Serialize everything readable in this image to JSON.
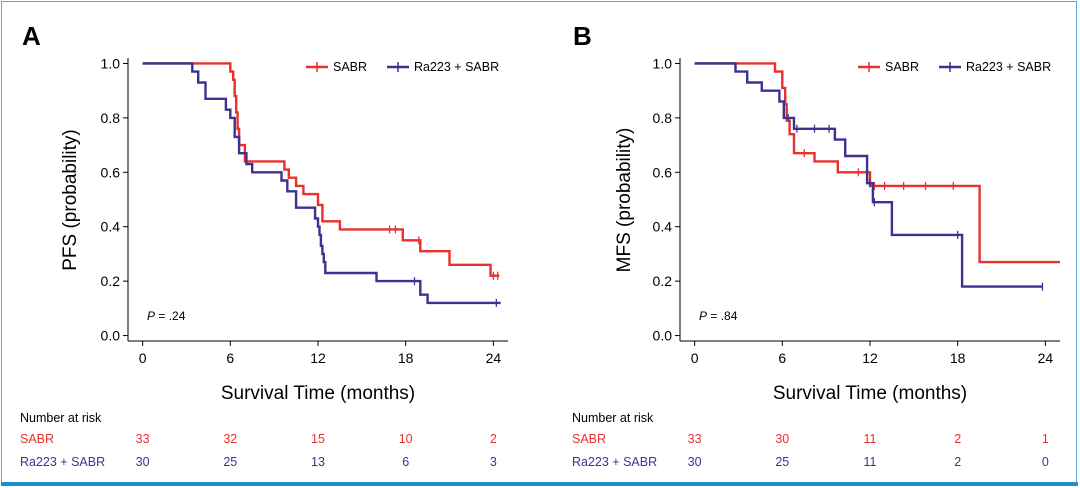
{
  "chart_data": [
    {
      "panel_label": "A",
      "type": "line",
      "subtype": "kaplan-meier",
      "ylabel": "PFS (probability)",
      "xlabel": "Survival Time (months)",
      "xlim": [
        -1,
        25
      ],
      "ylim": [
        -0.02,
        1.02
      ],
      "xticks": [
        0,
        6,
        12,
        18,
        24
      ],
      "yticks": [
        0.0,
        0.2,
        0.4,
        0.6,
        0.8,
        1.0
      ],
      "ytick_labels": [
        "0.0",
        "0.2",
        "0.4",
        "0.6",
        "0.8",
        "1.0"
      ],
      "legend_position": "top-right",
      "p_label": "P",
      "p_value": " = .24",
      "series": [
        {
          "name": "SABR",
          "color": "#e8312d",
          "steps": [
            [
              0,
              1.0
            ],
            [
              6,
              1.0
            ],
            [
              6,
              0.97
            ],
            [
              6.2,
              0.97
            ],
            [
              6.2,
              0.94
            ],
            [
              6.3,
              0.94
            ],
            [
              6.3,
              0.88
            ],
            [
              6.4,
              0.88
            ],
            [
              6.4,
              0.82
            ],
            [
              6.5,
              0.82
            ],
            [
              6.5,
              0.76
            ],
            [
              6.6,
              0.76
            ],
            [
              6.6,
              0.7
            ],
            [
              7.0,
              0.7
            ],
            [
              7.0,
              0.64
            ],
            [
              9.7,
              0.64
            ],
            [
              9.7,
              0.61
            ],
            [
              10.0,
              0.61
            ],
            [
              10.0,
              0.58
            ],
            [
              10.5,
              0.58
            ],
            [
              10.5,
              0.55
            ],
            [
              11.0,
              0.55
            ],
            [
              11.0,
              0.52
            ],
            [
              12.0,
              0.52
            ],
            [
              12.0,
              0.48
            ],
            [
              12.3,
              0.48
            ],
            [
              12.3,
              0.42
            ],
            [
              13.5,
              0.42
            ],
            [
              13.5,
              0.39
            ],
            [
              17.8,
              0.39
            ],
            [
              17.8,
              0.35
            ],
            [
              19.0,
              0.35
            ],
            [
              19.0,
              0.31
            ],
            [
              21.0,
              0.31
            ],
            [
              21.0,
              0.26
            ],
            [
              23.8,
              0.26
            ],
            [
              23.8,
              0.22
            ],
            [
              24.4,
              0.22
            ]
          ],
          "censored": [
            [
              16.9,
              0.39
            ],
            [
              17.3,
              0.39
            ],
            [
              18.9,
              0.35
            ],
            [
              24.0,
              0.22
            ],
            [
              24.3,
              0.22
            ]
          ]
        },
        {
          "name": "Ra223 + SABR",
          "color": "#3a3391",
          "steps": [
            [
              0,
              1.0
            ],
            [
              3.4,
              1.0
            ],
            [
              3.4,
              0.97
            ],
            [
              3.8,
              0.97
            ],
            [
              3.8,
              0.93
            ],
            [
              4.3,
              0.93
            ],
            [
              4.3,
              0.87
            ],
            [
              5.7,
              0.87
            ],
            [
              5.7,
              0.83
            ],
            [
              6.0,
              0.83
            ],
            [
              6.0,
              0.8
            ],
            [
              6.3,
              0.8
            ],
            [
              6.3,
              0.73
            ],
            [
              6.6,
              0.73
            ],
            [
              6.6,
              0.67
            ],
            [
              7.1,
              0.67
            ],
            [
              7.1,
              0.63
            ],
            [
              7.5,
              0.63
            ],
            [
              7.5,
              0.6
            ],
            [
              9.5,
              0.6
            ],
            [
              9.5,
              0.57
            ],
            [
              9.9,
              0.57
            ],
            [
              9.9,
              0.53
            ],
            [
              10.5,
              0.53
            ],
            [
              10.5,
              0.47
            ],
            [
              11.8,
              0.47
            ],
            [
              11.8,
              0.43
            ],
            [
              12.0,
              0.43
            ],
            [
              12.0,
              0.4
            ],
            [
              12.1,
              0.4
            ],
            [
              12.1,
              0.37
            ],
            [
              12.2,
              0.37
            ],
            [
              12.2,
              0.33
            ],
            [
              12.3,
              0.33
            ],
            [
              12.3,
              0.3
            ],
            [
              12.4,
              0.3
            ],
            [
              12.4,
              0.27
            ],
            [
              12.5,
              0.27
            ],
            [
              12.5,
              0.23
            ],
            [
              16.0,
              0.23
            ],
            [
              16.0,
              0.2
            ],
            [
              19.0,
              0.2
            ],
            [
              19.0,
              0.15
            ],
            [
              19.5,
              0.15
            ],
            [
              19.5,
              0.12
            ],
            [
              24.5,
              0.12
            ]
          ],
          "censored": [
            [
              18.6,
              0.2
            ],
            [
              24.2,
              0.12
            ]
          ]
        }
      ],
      "risk_table": {
        "title": "Number at risk",
        "timepoints": [
          0,
          6,
          12,
          18,
          24
        ],
        "rows": [
          {
            "name": "SABR",
            "color": "#e8312d",
            "values": [
              "33",
              "32",
              "15",
              "10",
              "2"
            ]
          },
          {
            "name": "Ra223 + SABR",
            "color": "#3a3391",
            "values": [
              "30",
              "25",
              "13",
              "6",
              "3"
            ]
          }
        ]
      }
    },
    {
      "panel_label": "B",
      "type": "line",
      "subtype": "kaplan-meier",
      "ylabel": "MFS (probability)",
      "xlabel": "Survival Time (months)",
      "xlim": [
        -1,
        25
      ],
      "ylim": [
        -0.02,
        1.02
      ],
      "xticks": [
        0,
        6,
        12,
        18,
        24
      ],
      "yticks": [
        0.0,
        0.2,
        0.4,
        0.6,
        0.8,
        1.0
      ],
      "ytick_labels": [
        "0.0",
        "0.2",
        "0.4",
        "0.6",
        "0.8",
        "1.0"
      ],
      "legend_position": "top-right",
      "p_label": "P",
      "p_value": " = .84",
      "series": [
        {
          "name": "SABR",
          "color": "#e8312d",
          "steps": [
            [
              0,
              1.0
            ],
            [
              5.5,
              1.0
            ],
            [
              5.5,
              0.97
            ],
            [
              6.0,
              0.97
            ],
            [
              6.0,
              0.91
            ],
            [
              6.2,
              0.91
            ],
            [
              6.2,
              0.85
            ],
            [
              6.3,
              0.85
            ],
            [
              6.3,
              0.79
            ],
            [
              6.5,
              0.79
            ],
            [
              6.5,
              0.74
            ],
            [
              6.8,
              0.74
            ],
            [
              6.8,
              0.67
            ],
            [
              8.2,
              0.67
            ],
            [
              8.2,
              0.64
            ],
            [
              9.8,
              0.64
            ],
            [
              9.8,
              0.6
            ],
            [
              12.0,
              0.6
            ],
            [
              12.0,
              0.55
            ],
            [
              19.5,
              0.55
            ],
            [
              19.5,
              0.27
            ],
            [
              25.0,
              0.27
            ]
          ],
          "censored": [
            [
              12.3,
              0.55
            ],
            [
              13.0,
              0.55
            ],
            [
              14.3,
              0.55
            ],
            [
              15.8,
              0.55
            ],
            [
              17.7,
              0.55
            ],
            [
              7.5,
              0.67
            ],
            [
              11.2,
              0.6
            ]
          ]
        },
        {
          "name": "Ra223 + SABR",
          "color": "#3a3391",
          "steps": [
            [
              0,
              1.0
            ],
            [
              2.8,
              1.0
            ],
            [
              2.8,
              0.97
            ],
            [
              3.6,
              0.97
            ],
            [
              3.6,
              0.93
            ],
            [
              4.6,
              0.93
            ],
            [
              4.6,
              0.9
            ],
            [
              5.8,
              0.9
            ],
            [
              5.8,
              0.86
            ],
            [
              6.1,
              0.86
            ],
            [
              6.1,
              0.8
            ],
            [
              6.8,
              0.8
            ],
            [
              6.8,
              0.76
            ],
            [
              9.6,
              0.76
            ],
            [
              9.6,
              0.72
            ],
            [
              10.3,
              0.72
            ],
            [
              10.3,
              0.66
            ],
            [
              11.8,
              0.66
            ],
            [
              11.8,
              0.56
            ],
            [
              12.2,
              0.56
            ],
            [
              12.2,
              0.49
            ],
            [
              13.5,
              0.49
            ],
            [
              13.5,
              0.37
            ],
            [
              18.3,
              0.37
            ],
            [
              18.3,
              0.18
            ],
            [
              23.8,
              0.18
            ]
          ],
          "censored": [
            [
              6.4,
              0.8
            ],
            [
              7.0,
              0.76
            ],
            [
              8.2,
              0.76
            ],
            [
              9.2,
              0.76
            ],
            [
              12.0,
              0.56
            ],
            [
              12.3,
              0.49
            ],
            [
              18.0,
              0.37
            ],
            [
              23.8,
              0.18
            ]
          ]
        }
      ],
      "risk_table": {
        "title": "Number at risk",
        "timepoints": [
          0,
          6,
          12,
          18,
          24
        ],
        "rows": [
          {
            "name": "SABR",
            "color": "#e8312d",
            "values": [
              "33",
              "30",
              "11",
              "2",
              "1"
            ]
          },
          {
            "name": "Ra223 + SABR",
            "color": "#3a3391",
            "values": [
              "30",
              "25",
              "11",
              "2",
              "0"
            ]
          }
        ]
      }
    }
  ]
}
